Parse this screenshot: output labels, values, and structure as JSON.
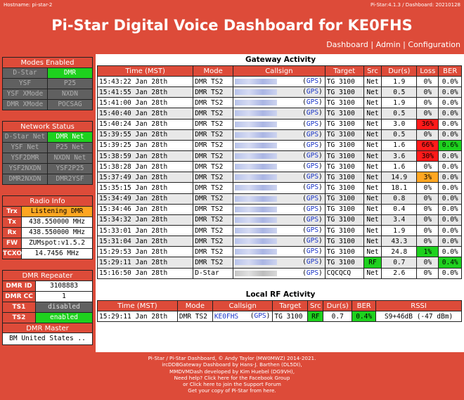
{
  "topbar": {
    "hostname": "Hostname: pi-star-2",
    "version": "Pi-Star:4.1.3 / Dashboard: 20210128"
  },
  "title": "Pi-Star Digital Voice Dashboard for KE0FHS",
  "nav": {
    "dashboard": "Dashboard",
    "admin": "Admin",
    "configuration": "Configuration",
    "sep": "|"
  },
  "modes": {
    "header": "Modes Enabled",
    "items": [
      {
        "label": "D-Star",
        "on": false
      },
      {
        "label": "DMR",
        "on": true
      },
      {
        "label": "YSF",
        "on": false
      },
      {
        "label": "P25",
        "on": false
      },
      {
        "label": "YSF XMode",
        "on": false
      },
      {
        "label": "NXDN",
        "on": false
      },
      {
        "label": "DMR XMode",
        "on": false
      },
      {
        "label": "POCSAG",
        "on": false
      }
    ]
  },
  "network": {
    "header": "Network Status",
    "items": [
      {
        "label": "D-Star Net",
        "on": false
      },
      {
        "label": "DMR Net",
        "on": true
      },
      {
        "label": "YSF Net",
        "on": false
      },
      {
        "label": "P25 Net",
        "on": false
      },
      {
        "label": "YSF2DMR",
        "on": false
      },
      {
        "label": "NXDN Net",
        "on": false
      },
      {
        "label": "YSF2NXDN",
        "on": false
      },
      {
        "label": "YSF2P25",
        "on": false
      },
      {
        "label": "DMR2NXDN",
        "on": false
      },
      {
        "label": "DMR2YSF",
        "on": false
      }
    ]
  },
  "radio": {
    "header": "Radio Info",
    "rows": [
      {
        "key": "Trx",
        "value": "Listening DMR"
      },
      {
        "key": "Tx",
        "value": "438.550000 MHz"
      },
      {
        "key": "Rx",
        "value": "438.550000 MHz"
      },
      {
        "key": "FW",
        "value": "ZUMspot:v1.5.2"
      },
      {
        "key": "TCXO",
        "value": "14.7456 MHz"
      }
    ]
  },
  "repeater": {
    "header": "DMR Repeater",
    "rows": [
      {
        "key": "DMR ID",
        "value": "3108883",
        "state": "plain"
      },
      {
        "key": "DMR CC",
        "value": "1",
        "state": "plain"
      },
      {
        "key": "TS1",
        "value": "disabled",
        "state": "disabled"
      },
      {
        "key": "TS2",
        "value": "enabled",
        "state": "enabled"
      }
    ],
    "master_header": "DMR Master",
    "master_value": "BM United States .."
  },
  "gateway": {
    "title": "Gateway Activity",
    "headers": [
      "Time (MST)",
      "Mode",
      "Callsign",
      "Target",
      "Src",
      "Dur(s)",
      "Loss",
      "BER"
    ],
    "gps_label": "GPS",
    "rows": [
      {
        "time": "15:43:22 Jan 28th",
        "mode": "DMR TS2",
        "target": "TG 3100",
        "src": "Net",
        "dur": "1.9",
        "loss": "0%",
        "ber": "0.0%",
        "loss_color": "",
        "ber_color": "",
        "src_color": ""
      },
      {
        "time": "15:41:55 Jan 28th",
        "mode": "DMR TS2",
        "target": "TG 3100",
        "src": "Net",
        "dur": "0.5",
        "loss": "0%",
        "ber": "0.0%",
        "loss_color": "",
        "ber_color": "",
        "src_color": ""
      },
      {
        "time": "15:41:00 Jan 28th",
        "mode": "DMR TS2",
        "target": "TG 3100",
        "src": "Net",
        "dur": "1.9",
        "loss": "0%",
        "ber": "0.0%",
        "loss_color": "",
        "ber_color": "",
        "src_color": ""
      },
      {
        "time": "15:40:40 Jan 28th",
        "mode": "DMR TS2",
        "target": "TG 3100",
        "src": "Net",
        "dur": "0.5",
        "loss": "0%",
        "ber": "0.0%",
        "loss_color": "",
        "ber_color": "",
        "src_color": ""
      },
      {
        "time": "15:40:24 Jan 28th",
        "mode": "DMR TS2",
        "target": "TG 3100",
        "src": "Net",
        "dur": "3.0",
        "loss": "36%",
        "ber": "0.0%",
        "loss_color": "red",
        "ber_color": "",
        "src_color": ""
      },
      {
        "time": "15:39:55 Jan 28th",
        "mode": "DMR TS2",
        "target": "TG 3100",
        "src": "Net",
        "dur": "0.5",
        "loss": "0%",
        "ber": "0.0%",
        "loss_color": "",
        "ber_color": "",
        "src_color": ""
      },
      {
        "time": "15:39:25 Jan 28th",
        "mode": "DMR TS2",
        "target": "TG 3100",
        "src": "Net",
        "dur": "1.6",
        "loss": "66%",
        "ber": "0.6%",
        "loss_color": "red",
        "ber_color": "green",
        "src_color": ""
      },
      {
        "time": "15:38:59 Jan 28th",
        "mode": "DMR TS2",
        "target": "TG 3100",
        "src": "Net",
        "dur": "3.6",
        "loss": "30%",
        "ber": "0.0%",
        "loss_color": "red",
        "ber_color": "",
        "src_color": ""
      },
      {
        "time": "15:38:28 Jan 28th",
        "mode": "DMR TS2",
        "target": "TG 3100",
        "src": "Net",
        "dur": "1.6",
        "loss": "0%",
        "ber": "0.0%",
        "loss_color": "",
        "ber_color": "",
        "src_color": ""
      },
      {
        "time": "15:37:49 Jan 28th",
        "mode": "DMR TS2",
        "target": "TG 3100",
        "src": "Net",
        "dur": "14.9",
        "loss": "3%",
        "ber": "0.0%",
        "loss_color": "amber",
        "ber_color": "",
        "src_color": ""
      },
      {
        "time": "15:35:15 Jan 28th",
        "mode": "DMR TS2",
        "target": "TG 3100",
        "src": "Net",
        "dur": "18.1",
        "loss": "0%",
        "ber": "0.0%",
        "loss_color": "",
        "ber_color": "",
        "src_color": ""
      },
      {
        "time": "15:34:49 Jan 28th",
        "mode": "DMR TS2",
        "target": "TG 3100",
        "src": "Net",
        "dur": "0.8",
        "loss": "0%",
        "ber": "0.0%",
        "loss_color": "",
        "ber_color": "",
        "src_color": ""
      },
      {
        "time": "15:34:46 Jan 28th",
        "mode": "DMR TS2",
        "target": "TG 3100",
        "src": "Net",
        "dur": "0.4",
        "loss": "0%",
        "ber": "0.0%",
        "loss_color": "",
        "ber_color": "",
        "src_color": ""
      },
      {
        "time": "15:34:32 Jan 28th",
        "mode": "DMR TS2",
        "target": "TG 3100",
        "src": "Net",
        "dur": "3.4",
        "loss": "0%",
        "ber": "0.0%",
        "loss_color": "",
        "ber_color": "",
        "src_color": ""
      },
      {
        "time": "15:33:01 Jan 28th",
        "mode": "DMR TS2",
        "target": "TG 3100",
        "src": "Net",
        "dur": "1.9",
        "loss": "0%",
        "ber": "0.0%",
        "loss_color": "",
        "ber_color": "",
        "src_color": ""
      },
      {
        "time": "15:31:04 Jan 28th",
        "mode": "DMR TS2",
        "target": "TG 3100",
        "src": "Net",
        "dur": "43.3",
        "loss": "0%",
        "ber": "0.0%",
        "loss_color": "",
        "ber_color": "",
        "src_color": ""
      },
      {
        "time": "15:29:53 Jan 28th",
        "mode": "DMR TS2",
        "target": "TG 3100",
        "src": "Net",
        "dur": "24.8",
        "loss": "1%",
        "ber": "0.0%",
        "loss_color": "green",
        "ber_color": "",
        "src_color": ""
      },
      {
        "time": "15:29:11 Jan 28th",
        "mode": "DMR TS2",
        "target": "TG 3100",
        "src": "RF",
        "dur": "0.7",
        "loss": "0%",
        "ber": "0.4%",
        "loss_color": "",
        "ber_color": "green",
        "src_color": "green"
      },
      {
        "time": "15:16:50 Jan 28th",
        "mode": "D-Star",
        "target": "CQCQCQ",
        "src": "Net",
        "dur": "2.6",
        "loss": "0%",
        "ber": "0.0%",
        "loss_color": "",
        "ber_color": "",
        "src_color": "",
        "gray": true
      }
    ]
  },
  "local_rf": {
    "title": "Local RF Activity",
    "headers": [
      "Time (MST)",
      "Mode",
      "Callsign",
      "Target",
      "Src",
      "Dur(s)",
      "BER",
      "RSSI"
    ],
    "row": {
      "time": "15:29:11 Jan 28th",
      "mode": "DMR TS2",
      "callsign": "KE0FHS",
      "gps": "GPS",
      "target": "TG 3100",
      "src": "RF",
      "dur": "0.7",
      "ber": "0.4%",
      "rssi": "S9+46dB (-47 dBm)"
    }
  },
  "footer": {
    "lines": [
      "Pi-Star / Pi-Star Dashboard, © Andy Taylor (MW0MWZ) 2014-2021.",
      "ircDDBGateway Dashboard by Hans-J. Barthen (DL5DI),",
      "MMDVMDash developed by Kim Huebel (DG9VH),",
      "Need help? Click here for the Facebook Group",
      "or Click here to join the Support Forum",
      "Get your copy of Pi-Star from here."
    ]
  },
  "colors": {
    "brand": "#dd4b39",
    "on": "#1ed11e",
    "off": "#606060",
    "warn": "#ffa621",
    "alert": "#ff1a1a",
    "link": "#1a35c9"
  }
}
